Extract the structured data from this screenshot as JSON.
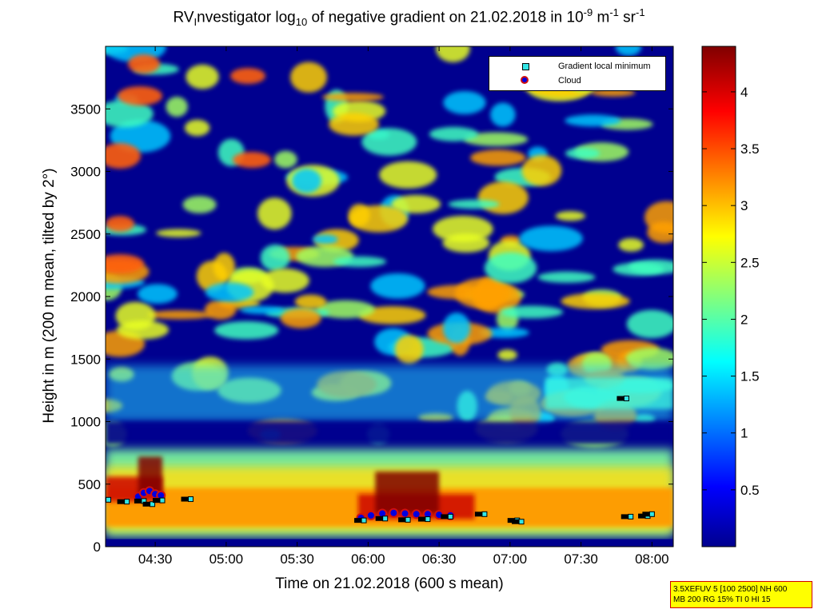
{
  "title": {
    "pre": "RV",
    "sub1": "I",
    "mid1": "nvestigator log",
    "sub2": "10",
    "mid2": " of negative gradient on 21.02.2018 in 10",
    "sup1": "-9",
    "mid3": " m",
    "sup2": "-1",
    "mid4": " sr",
    "sup3": "-1"
  },
  "legend": {
    "items": [
      {
        "label": "Gradient local minimum",
        "marker": "cyan-square"
      },
      {
        "label": "Cloud",
        "marker": "blue-dot-red-edge"
      }
    ]
  },
  "info_box": {
    "line1": "3.5XEFUV 5 [100 2500] NH 600",
    "line2": "MB 200 RG 15% TI 0 HI 15"
  },
  "colors": {
    "background_class": "#00008f",
    "colormap": [
      "#00008f",
      "#0000ff",
      "#00ffff",
      "#ffff00",
      "#ff0000",
      "#800000"
    ],
    "gradient_marker": "#33e6e6",
    "cloud_fill": "#0000e0",
    "cloud_edge": "#d01010"
  },
  "chart_data": {
    "type": "heatmap",
    "xlabel": "Time on 21.02.2018 (600 s mean)",
    "ylabel": "Height in m (200 m mean, tilted by 2°)",
    "x_unit": "hours",
    "xlim": [
      4.15,
      8.15
    ],
    "ylim": [
      0,
      4000
    ],
    "x_ticks": [
      {
        "value": 4.5,
        "label": "04:30"
      },
      {
        "value": 5.0,
        "label": "05:00"
      },
      {
        "value": 5.5,
        "label": "05:30"
      },
      {
        "value": 6.0,
        "label": "06:00"
      },
      {
        "value": 6.5,
        "label": "06:30"
      },
      {
        "value": 7.0,
        "label": "07:00"
      },
      {
        "value": 7.5,
        "label": "07:30"
      },
      {
        "value": 8.0,
        "label": "08:00"
      }
    ],
    "y_ticks": [
      0,
      500,
      1000,
      1500,
      2000,
      2500,
      3000,
      3500
    ],
    "colorbar": {
      "range": [
        0,
        4.4
      ],
      "ticks": [
        0.5,
        1,
        1.5,
        2,
        2.5,
        3,
        3.5,
        4
      ]
    },
    "gradient_local_minimum": [
      {
        "x": 4.17,
        "y": 375
      },
      {
        "x": 4.3,
        "y": 360
      },
      {
        "x": 4.42,
        "y": 365
      },
      {
        "x": 4.48,
        "y": 340
      },
      {
        "x": 4.55,
        "y": 370
      },
      {
        "x": 4.75,
        "y": 380
      },
      {
        "x": 5.97,
        "y": 210
      },
      {
        "x": 6.12,
        "y": 225
      },
      {
        "x": 6.28,
        "y": 215
      },
      {
        "x": 6.42,
        "y": 220
      },
      {
        "x": 6.58,
        "y": 240
      },
      {
        "x": 6.82,
        "y": 260
      },
      {
        "x": 7.05,
        "y": 210
      },
      {
        "x": 7.08,
        "y": 200
      },
      {
        "x": 7.85,
        "y": 240
      },
      {
        "x": 7.97,
        "y": 245
      },
      {
        "x": 8.0,
        "y": 260
      },
      {
        "x": 7.82,
        "y": 1185
      }
    ],
    "cloud": [
      {
        "x": 4.38,
        "y": 400
      },
      {
        "x": 4.42,
        "y": 430
      },
      {
        "x": 4.46,
        "y": 445
      },
      {
        "x": 4.5,
        "y": 420
      },
      {
        "x": 4.54,
        "y": 410
      },
      {
        "x": 5.95,
        "y": 230
      },
      {
        "x": 6.02,
        "y": 250
      },
      {
        "x": 6.1,
        "y": 265
      },
      {
        "x": 6.18,
        "y": 270
      },
      {
        "x": 6.26,
        "y": 265
      },
      {
        "x": 6.34,
        "y": 260
      },
      {
        "x": 6.42,
        "y": 260
      },
      {
        "x": 6.5,
        "y": 255
      },
      {
        "x": 6.58,
        "y": 250
      }
    ]
  }
}
